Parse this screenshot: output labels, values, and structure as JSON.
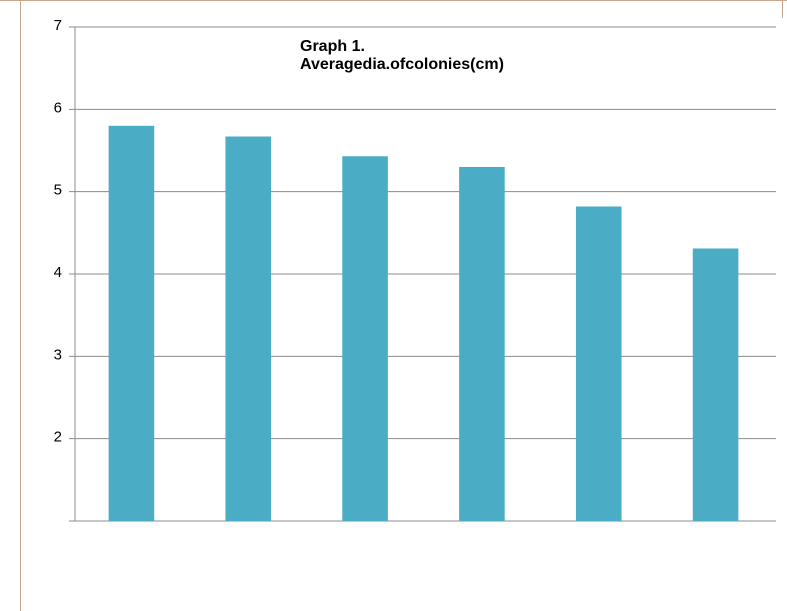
{
  "chart_data": {
    "type": "bar",
    "title": "Graph 1.\nAveragedia.ofcolonies(cm)",
    "xlabel": "",
    "ylabel": "",
    "categories": [
      "",
      "",
      "",
      "",
      "",
      ""
    ],
    "values": [
      5.8,
      5.67,
      5.43,
      5.3,
      4.82,
      4.31
    ],
    "ylim": [
      1,
      7
    ],
    "yticks": [
      1,
      2,
      3,
      4,
      5,
      6,
      7
    ],
    "ytick_labels": [
      "",
      "2",
      "3",
      "4",
      "5",
      "6",
      "7"
    ],
    "grid": true,
    "legend": "none",
    "bar_color": "#4bacc6",
    "grid_color": "#8c8c8c"
  }
}
